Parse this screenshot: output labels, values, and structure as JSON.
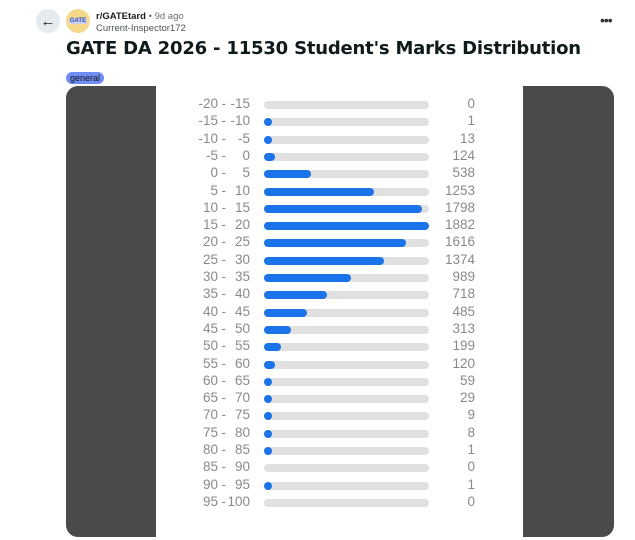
{
  "post": {
    "subreddit": "r/GATEtard",
    "separator": "•",
    "age": "9d ago",
    "author": "Current-Inspector172",
    "title": "GATE DA 2026 - 11530 Student's Marks Distribution",
    "flair": "general",
    "avatar_text": "GATE"
  },
  "icons": {
    "back": "arrow-left-icon",
    "more": "more-horizontal-icon"
  },
  "colors": {
    "bar": "#1a73e8",
    "track": "#e0e0e0",
    "flair": "#6e8ef5"
  },
  "chart_data": {
    "type": "bar",
    "orientation": "horizontal",
    "max_reference": 1882,
    "categories": [
      [
        "-20",
        "-15"
      ],
      [
        "-15",
        "-10"
      ],
      [
        "-10",
        "-5"
      ],
      [
        "-5",
        "0"
      ],
      [
        "0",
        "5"
      ],
      [
        "5",
        "10"
      ],
      [
        "10",
        "15"
      ],
      [
        "15",
        "20"
      ],
      [
        "20",
        "25"
      ],
      [
        "25",
        "30"
      ],
      [
        "30",
        "35"
      ],
      [
        "35",
        "40"
      ],
      [
        "40",
        "45"
      ],
      [
        "45",
        "50"
      ],
      [
        "50",
        "55"
      ],
      [
        "55",
        "60"
      ],
      [
        "60",
        "65"
      ],
      [
        "65",
        "70"
      ],
      [
        "70",
        "75"
      ],
      [
        "75",
        "80"
      ],
      [
        "80",
        "85"
      ],
      [
        "85",
        "90"
      ],
      [
        "90",
        "95"
      ],
      [
        "95",
        "100"
      ]
    ],
    "values": [
      0,
      1,
      13,
      124,
      538,
      1253,
      1798,
      1882,
      1616,
      1374,
      989,
      718,
      485,
      313,
      199,
      120,
      59,
      29,
      9,
      8,
      1,
      0,
      1,
      0
    ]
  }
}
